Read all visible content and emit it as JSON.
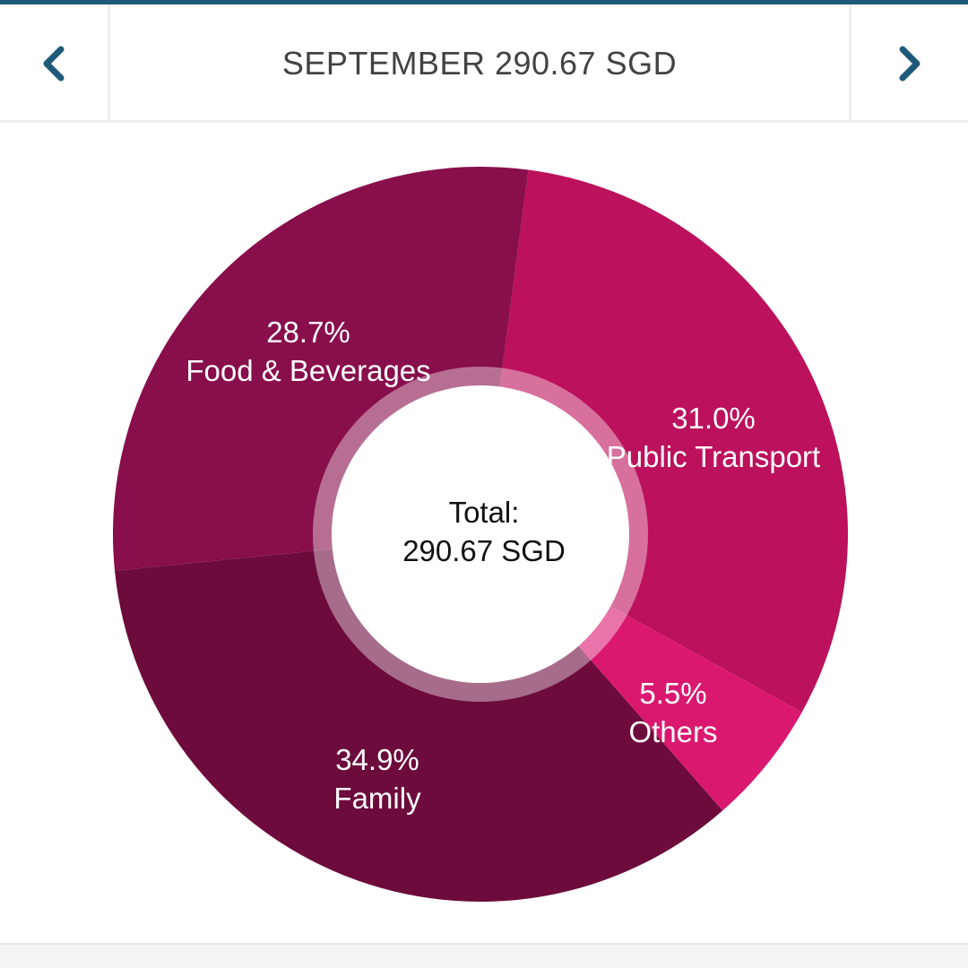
{
  "header": {
    "title": "SEPTEMBER 290.67 SGD",
    "prev_icon": "chevron-left-icon",
    "next_icon": "chevron-right-icon",
    "accent_color": "#1e5a78"
  },
  "chart_data": {
    "type": "pie",
    "style": "donut",
    "center_text_line1": "Total:",
    "center_text_line2": "290.67 SGD",
    "slices": [
      {
        "label": "Public Transport",
        "percent": 31.0,
        "percent_text": "31.0%",
        "color": "#bc115c"
      },
      {
        "label": "Others",
        "percent": 5.5,
        "percent_text": "5.5%",
        "color": "#db1870"
      },
      {
        "label": "Family",
        "percent": 34.9,
        "percent_text": "34.9%",
        "color": "#6c0b3c"
      },
      {
        "label": "Food & Beverages",
        "percent": 28.7,
        "percent_text": "28.7%",
        "color": "#880e4c"
      }
    ]
  }
}
